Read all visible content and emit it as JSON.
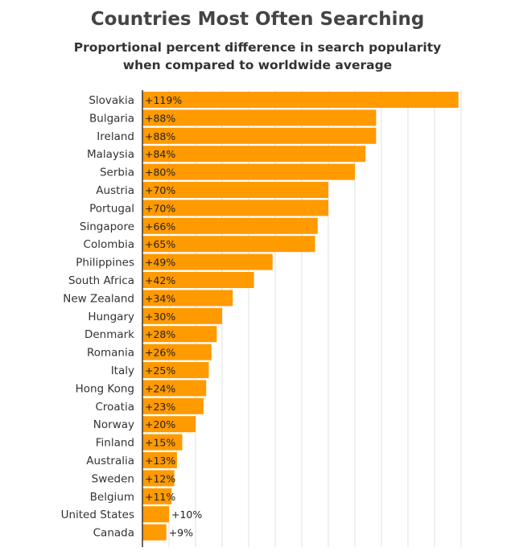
{
  "chart_data": {
    "type": "bar",
    "orientation": "horizontal",
    "title": "Countries Most Often Searching",
    "subtitle": [
      "Proportional percent difference in search popularity",
      "when compared to worldwide average"
    ],
    "xlabel": "",
    "ylabel": "",
    "xlim": [
      0,
      120
    ],
    "grid": true,
    "bar_color": "#ff9a00",
    "categories": [
      "Slovakia",
      "Bulgaria",
      "Ireland",
      "Malaysia",
      "Serbia",
      "Austria",
      "Portugal",
      "Singapore",
      "Colombia",
      "Philippines",
      "South Africa",
      "New Zealand",
      "Hungary",
      "Denmark",
      "Romania",
      "Italy",
      "Hong Kong",
      "Croatia",
      "Norway",
      "Finland",
      "Australia",
      "Sweden",
      "Belgium",
      "United States",
      "Canada"
    ],
    "values": [
      119,
      88,
      88,
      84,
      80,
      70,
      70,
      66,
      65,
      49,
      42,
      34,
      30,
      28,
      26,
      25,
      24,
      23,
      20,
      15,
      13,
      12,
      11,
      10,
      9
    ],
    "data_labels": [
      "+119%",
      "+88%",
      "+88%",
      "+84%",
      "+80%",
      "+70%",
      "+70%",
      "+66%",
      "+65%",
      "+49%",
      "+42%",
      "+34%",
      "+30%",
      "+28%",
      "+26%",
      "+25%",
      "+24%",
      "+23%",
      "+20%",
      "+15%",
      "+13%",
      "+12%",
      "+11%",
      "+10%",
      "+9%"
    ]
  }
}
